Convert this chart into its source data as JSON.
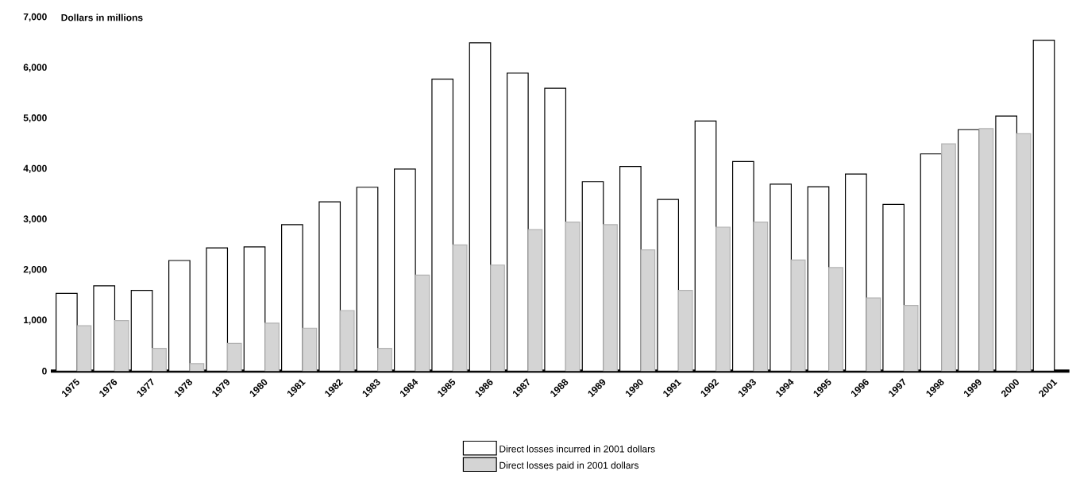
{
  "chart_data": {
    "type": "bar",
    "ylabel": "Dollars in millions",
    "categories": [
      "1975",
      "1976",
      "1977",
      "1978",
      "1979",
      "1980",
      "1981",
      "1982",
      "1983",
      "1984",
      "1985",
      "1986",
      "1987",
      "1988",
      "1989",
      "1990",
      "1991",
      "1992",
      "1993",
      "1994",
      "1995",
      "1996",
      "1997",
      "1998",
      "1999",
      "2000",
      "2001"
    ],
    "series": [
      {
        "name": "Direct losses incurred in 2001 dollars",
        "color": "#ffffff",
        "values": [
          1540,
          1690,
          1600,
          2190,
          2440,
          2460,
          2900,
          3350,
          3640,
          4000,
          5780,
          6500,
          5900,
          5600,
          3750,
          4050,
          3400,
          4950,
          4150,
          3700,
          3650,
          3900,
          3300,
          4300,
          4780,
          5050,
          6550
        ]
      },
      {
        "name": "Direct losses paid in 2001 dollars",
        "color": "#d4d4d4",
        "values": [
          900,
          1000,
          450,
          150,
          550,
          950,
          850,
          1200,
          450,
          1900,
          2500,
          2100,
          2800,
          2950,
          2900,
          2400,
          1600,
          2850,
          2950,
          2200,
          2050,
          1450,
          1300,
          4500,
          4800,
          4700,
          null
        ]
      }
    ],
    "ylim": [
      0,
      7000
    ],
    "yticks": [
      {
        "value": 0,
        "label": "0"
      },
      {
        "value": 1000,
        "label": "1,000"
      },
      {
        "value": 2000,
        "label": "2,000"
      },
      {
        "value": 3000,
        "label": "3,000"
      },
      {
        "value": 4000,
        "label": "4,000"
      },
      {
        "value": 5000,
        "label": "5,000"
      },
      {
        "value": 6000,
        "label": "6,000"
      },
      {
        "value": 7000,
        "label": "7,000"
      }
    ],
    "legend": "bottom"
  }
}
